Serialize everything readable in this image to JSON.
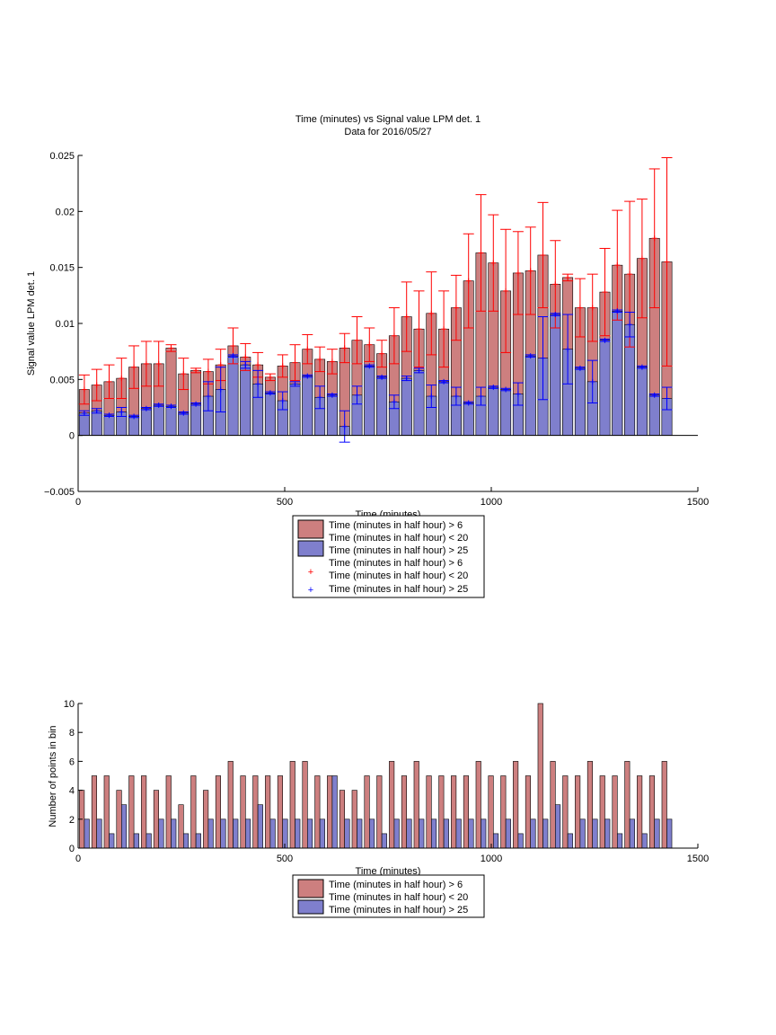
{
  "colors": {
    "red_bar": "#cd7f7f",
    "blue_bar": "#7f7fcd",
    "red_err": "#ff0000",
    "blue_err": "#0000ff",
    "edge": "#000000"
  },
  "chart_data": [
    {
      "type": "bar",
      "title": "Time (minutes) vs Signal value LPM det. 1",
      "subtitle": "Data for 2016/05/27",
      "xlabel": "Time (minutes)",
      "ylabel": "Signal value LPM det. 1",
      "xlim": [
        0,
        1500
      ],
      "ylim": [
        -0.005,
        0.025
      ],
      "xticks": [
        0,
        500,
        1000,
        1500
      ],
      "xtick_labels": [
        "0",
        "500",
        "1000",
        "1500"
      ],
      "yticks": [
        -0.005,
        0,
        0.005,
        0.01,
        0.015,
        0.02,
        0.025
      ],
      "ytick_labels": [
        "−0.005",
        "0",
        "0.005",
        "0.01",
        "0.015",
        "0.02",
        "0.025"
      ],
      "legend_location": "bottom-center, below plot",
      "legend": [
        {
          "kind": "bar",
          "color": "red",
          "lines": [
            "Time (minutes in half hour) > 6",
            "Time (minutes in half hour) < 20"
          ]
        },
        {
          "kind": "bar",
          "color": "blue",
          "lines": [
            "Time (minutes in half hour) > 25"
          ]
        },
        {
          "kind": "marker",
          "color": "red",
          "lines": [
            "Time (minutes in half hour) > 6",
            "Time (minutes in half hour) < 20"
          ]
        },
        {
          "kind": "marker",
          "color": "blue",
          "lines": [
            "Time (minutes in half hour) > 25"
          ]
        }
      ],
      "x": [
        15,
        45,
        75,
        105,
        135,
        165,
        195,
        225,
        255,
        285,
        315,
        345,
        375,
        405,
        435,
        465,
        495,
        525,
        555,
        585,
        615,
        645,
        675,
        705,
        735,
        765,
        795,
        825,
        855,
        885,
        915,
        945,
        975,
        1005,
        1035,
        1065,
        1095,
        1125,
        1155,
        1185,
        1215,
        1245,
        1275,
        1305,
        1335,
        1365,
        1395,
        1425
      ],
      "series": [
        {
          "name": "Time (minutes in half hour) > 6 Time (minutes in half hour) < 20",
          "color": "red",
          "values": [
            0.0041,
            0.0045,
            0.0048,
            0.0051,
            0.0061,
            0.0064,
            0.0064,
            0.0078,
            0.0055,
            0.0058,
            0.0057,
            0.0063,
            0.008,
            0.007,
            0.0063,
            0.0052,
            0.0062,
            0.0065,
            0.0077,
            0.0068,
            0.0066,
            0.0078,
            0.0085,
            0.0081,
            0.0073,
            0.0089,
            0.0106,
            0.0095,
            0.0109,
            0.0095,
            0.0114,
            0.0138,
            0.0163,
            0.0154,
            0.0129,
            0.0145,
            0.0147,
            0.0161,
            0.0135,
            0.0141,
            0.0114,
            0.0114,
            0.0128,
            0.0152,
            0.0144,
            0.0158,
            0.0176,
            0.0155
          ],
          "errors": [
            0.0013,
            0.0014,
            0.0015,
            0.0018,
            0.0019,
            0.002,
            0.002,
            0.0003,
            0.0014,
            0.0002,
            0.0011,
            0.0014,
            0.0016,
            0.0012,
            0.0011,
            0.0003,
            0.001,
            0.0016,
            0.0013,
            0.0011,
            0.0011,
            0.0013,
            0.0021,
            0.0015,
            0.0012,
            0.0025,
            0.0031,
            0.0034,
            0.0037,
            0.0034,
            0.0029,
            0.0042,
            0.0052,
            0.0043,
            0.0055,
            0.0037,
            0.0039,
            0.0047,
            0.0039,
            0.0003,
            0.0026,
            0.003,
            0.0039,
            0.0049,
            0.0065,
            0.0053,
            0.0062,
            0.0093
          ]
        },
        {
          "name": "Time (minutes in half hour) > 25",
          "color": "blue",
          "values": [
            0.002,
            0.0022,
            0.0018,
            0.0021,
            0.0017,
            0.0024,
            0.0027,
            0.0026,
            0.002,
            0.0028,
            0.0035,
            0.0041,
            0.0071,
            0.0063,
            0.0046,
            0.0038,
            0.0031,
            0.0046,
            0.0053,
            0.0034,
            0.0036,
            0.0008,
            0.0036,
            0.0062,
            0.0052,
            0.003,
            0.0051,
            0.0058,
            0.0035,
            0.0048,
            0.0035,
            0.0029,
            0.0035,
            0.0043,
            0.0041,
            0.0037,
            0.0071,
            0.0069,
            0.0108,
            0.0077,
            0.006,
            0.0048,
            0.0085,
            0.0111,
            0.0099,
            0.0061,
            0.0036,
            0.0033
          ],
          "errors": [
            0.0002,
            0.0002,
            0.0001,
            0.0004,
            0.0001,
            0.0001,
            0.0001,
            0.0001,
            0.0001,
            0.0001,
            0.0013,
            0.002,
            0.0001,
            0.0003,
            0.0012,
            0.0001,
            0.0008,
            0.0002,
            0.0001,
            0.001,
            0.0001,
            0.0014,
            0.0008,
            0.0001,
            0.0001,
            0.0006,
            0.0002,
            0.0002,
            0.001,
            0.0001,
            0.0008,
            0.0001,
            0.0008,
            0.0001,
            0.0001,
            0.001,
            0.0001,
            0.0037,
            0.0001,
            0.0031,
            0.0001,
            0.0019,
            0.0001,
            0.0001,
            0.0011,
            0.0001,
            0.0001,
            0.001
          ]
        }
      ]
    },
    {
      "type": "bar",
      "title": "",
      "xlabel": "Time (minutes)",
      "ylabel": "Number of points in bin",
      "xlim": [
        0,
        1500
      ],
      "ylim": [
        0,
        10
      ],
      "xticks": [
        0,
        500,
        1000,
        1500
      ],
      "xtick_labels": [
        "0",
        "500",
        "1000",
        "1500"
      ],
      "yticks": [
        0,
        2,
        4,
        6,
        8,
        10
      ],
      "ytick_labels": [
        "0",
        "2",
        "4",
        "6",
        "8",
        "10"
      ],
      "legend_location": "bottom-center, below plot",
      "legend": [
        {
          "kind": "bar",
          "color": "red",
          "lines": [
            "Time (minutes in half hour) > 6",
            "Time (minutes in half hour) < 20"
          ]
        },
        {
          "kind": "bar",
          "color": "blue",
          "lines": [
            "Time (minutes in half hour) > 25"
          ]
        }
      ],
      "x": [
        15,
        45,
        75,
        105,
        135,
        165,
        195,
        225,
        255,
        285,
        315,
        345,
        375,
        405,
        435,
        465,
        495,
        525,
        555,
        585,
        615,
        645,
        675,
        705,
        735,
        765,
        795,
        825,
        855,
        885,
        915,
        945,
        975,
        1005,
        1035,
        1065,
        1095,
        1125,
        1155,
        1185,
        1215,
        1245,
        1275,
        1305,
        1335,
        1365,
        1395,
        1425
      ],
      "series": [
        {
          "name": "Time (minutes in half hour) > 6 Time (minutes in half hour) < 20",
          "color": "red",
          "values": [
            4,
            5,
            5,
            4,
            5,
            5,
            4,
            5,
            3,
            5,
            4,
            5,
            6,
            5,
            5,
            5,
            5,
            6,
            6,
            5,
            5,
            4,
            4,
            5,
            5,
            6,
            5,
            6,
            5,
            5,
            5,
            5,
            6,
            5,
            5,
            6,
            5,
            10,
            6,
            5,
            5,
            6,
            5,
            5,
            6,
            5,
            5,
            6
          ]
        },
        {
          "name": "Time (minutes in half hour) > 25",
          "color": "blue",
          "values": [
            2,
            2,
            1,
            3,
            1,
            1,
            2,
            2,
            1,
            1,
            2,
            2,
            2,
            2,
            3,
            2,
            2,
            2,
            2,
            2,
            5,
            2,
            2,
            2,
            1,
            2,
            2,
            2,
            2,
            2,
            2,
            2,
            2,
            1,
            2,
            1,
            2,
            2,
            3,
            1,
            2,
            2,
            2,
            1,
            2,
            1,
            2,
            2
          ]
        }
      ]
    }
  ]
}
